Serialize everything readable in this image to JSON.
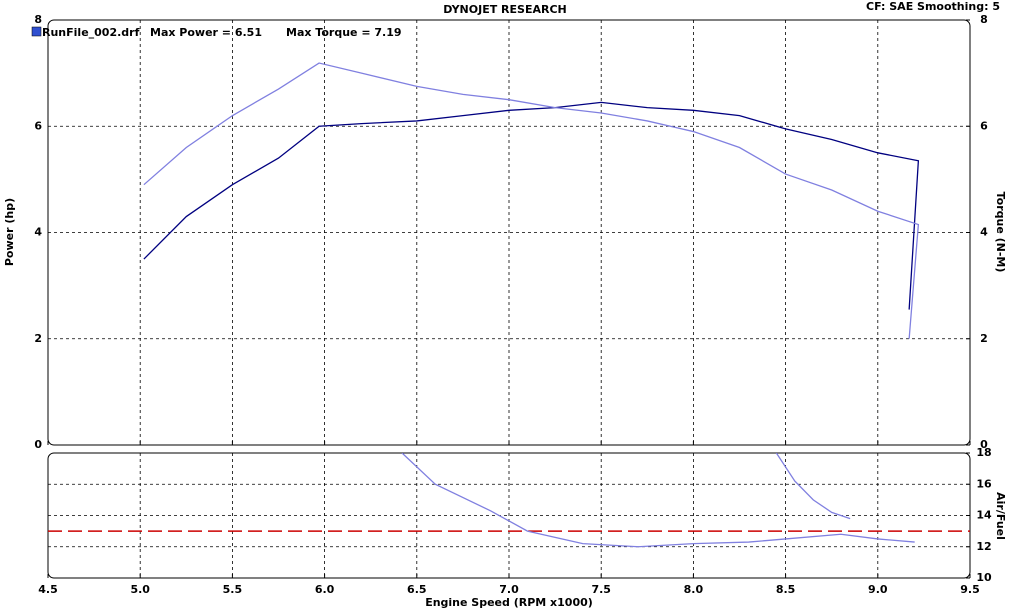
{
  "chart_data": [
    {
      "type": "line",
      "title": "DYNOJET RESEARCH",
      "subtitle": "CF: SAE  Smoothing: 5",
      "legend": [
        "RunFile_002.drf",
        "Max Power = 6.51",
        "Max Torque = 7.19"
      ],
      "ylabel": "Power (hp)",
      "y2label": "Torque (N-M)",
      "x": [
        5.02,
        5.25,
        5.5,
        5.75,
        5.97,
        6.2,
        6.5,
        6.75,
        7.0,
        7.25,
        7.5,
        7.75,
        8.0,
        8.25,
        8.5,
        8.75,
        9.0,
        9.22,
        9.17
      ],
      "series": [
        {
          "name": "Power",
          "color": "#000080",
          "values": [
            3.5,
            4.3,
            4.9,
            5.4,
            6.0,
            6.05,
            6.1,
            6.2,
            6.3,
            6.35,
            6.45,
            6.35,
            6.3,
            6.2,
            5.95,
            5.75,
            5.5,
            5.35,
            2.55
          ]
        },
        {
          "name": "Torque",
          "color": "#8080e0",
          "axis": "y2",
          "values": [
            4.9,
            5.6,
            6.2,
            6.7,
            7.19,
            7.0,
            6.75,
            6.6,
            6.5,
            6.35,
            6.25,
            6.1,
            5.9,
            5.6,
            5.1,
            4.8,
            4.4,
            4.15,
            2.0
          ]
        }
      ],
      "xlim": [
        4.5,
        9.5
      ],
      "xticks": [
        4.5,
        {
          "value": 5,
          "label": "5.0"
        },
        5.5,
        {
          "value": 6,
          "label": "6.0"
        },
        6.5,
        {
          "value": 7,
          "label": "7.0"
        },
        7.5,
        {
          "value": 8,
          "label": "8.0"
        },
        8.5,
        {
          "value": 9,
          "label": "9.0"
        },
        9.5
      ],
      "ylim": [
        0,
        8
      ],
      "yticks": [
        0,
        2,
        4,
        6,
        8
      ],
      "y2lim": [
        0,
        8
      ],
      "y2ticks": [
        0,
        2,
        4,
        6,
        8
      ],
      "grid": true
    },
    {
      "type": "line",
      "xlabel": "Engine Speed (RPM x1000)",
      "y2label": "Air/Fuel",
      "series": [
        {
          "color": "#8080e0",
          "x": [
            6.42,
            6.6,
            6.9,
            7.1,
            7.4,
            7.7,
            8.0,
            8.3,
            8.5,
            8.8,
            9.0,
            9.2
          ],
          "values": [
            18,
            16,
            14.3,
            13,
            12.2,
            12.0,
            12.2,
            12.3,
            12.5,
            12.8,
            12.5,
            12.3
          ]
        },
        {
          "color": "#8080e0",
          "x": [
            8.45,
            8.55,
            8.65,
            8.75,
            8.85
          ],
          "values": [
            18,
            16.2,
            15.0,
            14.2,
            13.8
          ]
        }
      ],
      "reference_line": {
        "value": 13,
        "color": "#cc0000"
      },
      "xlim": [
        4.5,
        9.5
      ],
      "xticks": [
        4.5,
        {
          "value": 5,
          "label": "5.0"
        },
        5.5,
        {
          "value": 6,
          "label": "6.0"
        },
        6.5,
        {
          "value": 7,
          "label": "7.0"
        },
        7.5,
        {
          "value": 8,
          "label": "8.0"
        },
        8.5,
        {
          "value": 9,
          "label": "9.0"
        },
        9.5
      ],
      "y2lim": [
        10,
        18
      ],
      "y2ticks": [
        10,
        12,
        14,
        16,
        18
      ],
      "grid": true
    }
  ]
}
